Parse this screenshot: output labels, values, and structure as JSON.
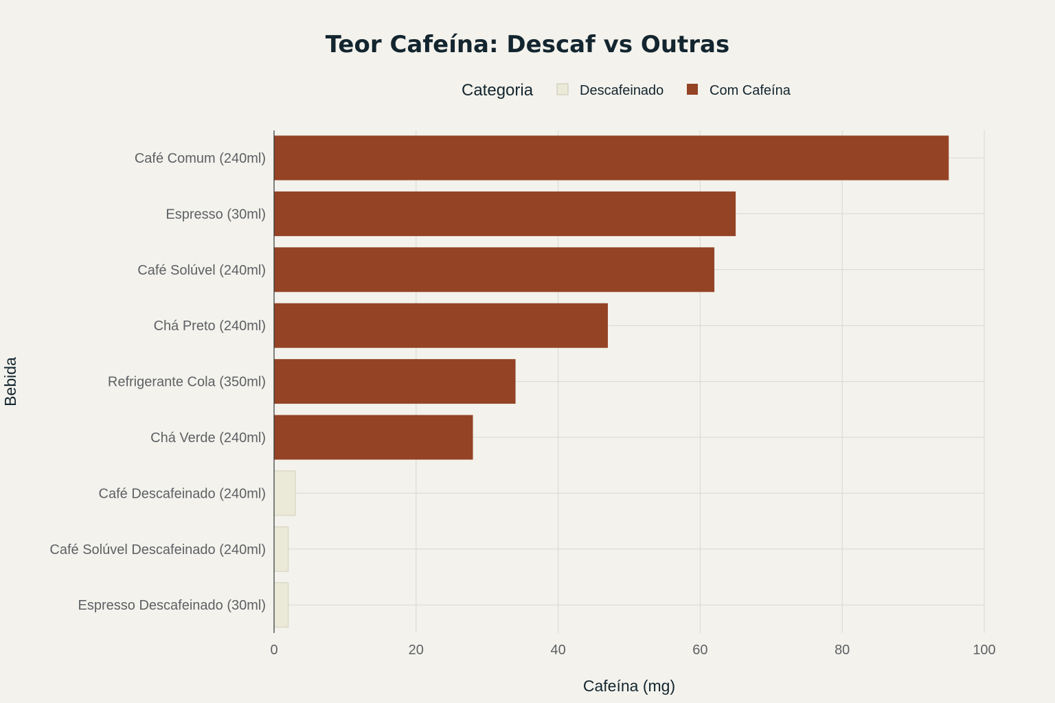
{
  "chart_data": {
    "type": "bar",
    "orientation": "horizontal",
    "title": "Teor Cafeína: Descaf vs Outras",
    "xlabel": "Cafeína (mg)",
    "ylabel": "Bebida",
    "xlim": [
      0,
      100
    ],
    "xticks": [
      0,
      20,
      40,
      60,
      80,
      100
    ],
    "grid": true,
    "legend": {
      "title": "Categoria",
      "placement": "top-center",
      "entries": [
        {
          "name": "Descafeinado",
          "color": "#EBE9D7"
        },
        {
          "name": "Com Cafeína",
          "color": "#944325"
        }
      ]
    },
    "categories": [
      "Café Comum (240ml)",
      "Espresso (30ml)",
      "Café Solúvel (240ml)",
      "Chá Preto (240ml)",
      "Refrigerante Cola (350ml)",
      "Chá Verde (240ml)",
      "Café Descafeinado (240ml)",
      "Café Solúvel Descafeinado (240ml)",
      "Espresso Descafeinado (30ml)"
    ],
    "values": [
      95,
      65,
      62,
      47,
      34,
      28,
      3,
      2,
      2
    ],
    "series_of_bar": [
      "Com Cafeína",
      "Com Cafeína",
      "Com Cafeína",
      "Com Cafeína",
      "Com Cafeína",
      "Com Cafeína",
      "Descafeinado",
      "Descafeinado",
      "Descafeinado"
    ]
  }
}
